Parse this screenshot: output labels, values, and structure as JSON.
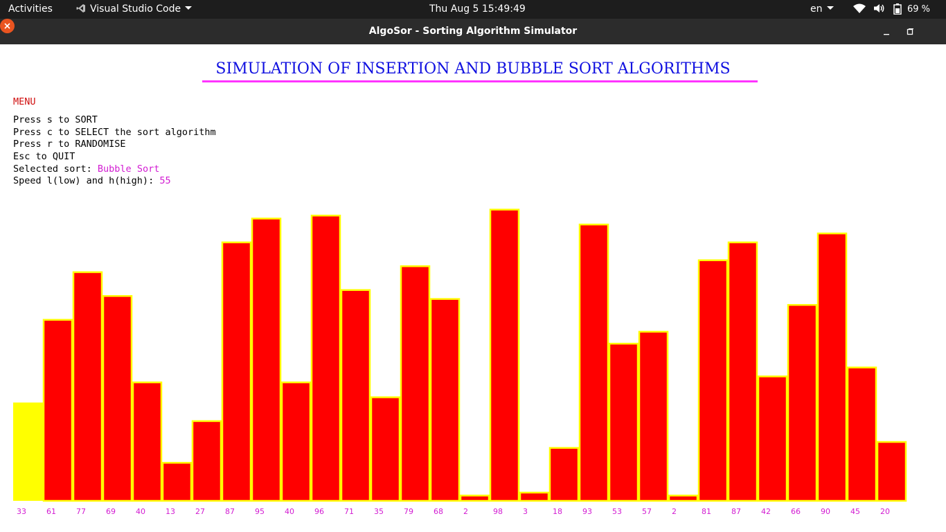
{
  "topbar": {
    "activities": "Activities",
    "app_name": "Visual Studio Code",
    "clock": "Thu Aug 5  15:49:49",
    "language": "en",
    "battery_percent": "69 %"
  },
  "window": {
    "title": "AlgoSor - Sorting Algorithm Simulator"
  },
  "app": {
    "heading": "SIMULATION OF INSERTION AND BUBBLE SORT ALGORITHMS",
    "menu_label": "MENU",
    "instructions": [
      "Press s to SORT",
      "Press c to SELECT the sort algorithm",
      "Press r to RANDOMISE",
      "Esc to QUIT"
    ],
    "selected_sort_label": "Selected sort: ",
    "selected_sort_value": "Bubble Sort",
    "speed_label": "Speed l(low) and h(high): ",
    "speed_value": "55"
  },
  "colors": {
    "bar_fill": "#ff0000",
    "bar_outline": "#ffff00",
    "active_bar": "#ffff00",
    "value_label": "#d21bd2",
    "heading": "#1010e0",
    "heading_rule": "#ff33ff",
    "menu_label": "#d01010"
  },
  "chart_data": {
    "type": "bar",
    "values": [
      33,
      61,
      77,
      69,
      40,
      13,
      27,
      87,
      95,
      40,
      96,
      71,
      35,
      79,
      68,
      2,
      98,
      3,
      18,
      93,
      53,
      57,
      2,
      81,
      87,
      42,
      66,
      90,
      45,
      20
    ],
    "value_labels": [
      "33",
      "61",
      "77",
      "69",
      "40",
      "13",
      "27",
      "87",
      "95",
      "40",
      "96",
      "71",
      "35",
      "79",
      "68",
      "2",
      "98",
      "3",
      "18",
      "93",
      "53",
      "57",
      "2",
      "81",
      "87",
      "42",
      "66",
      "90",
      "45",
      "20"
    ],
    "highlighted_index": 0,
    "ylim": [
      0,
      100
    ],
    "title": "",
    "xlabel": "",
    "ylabel": ""
  }
}
